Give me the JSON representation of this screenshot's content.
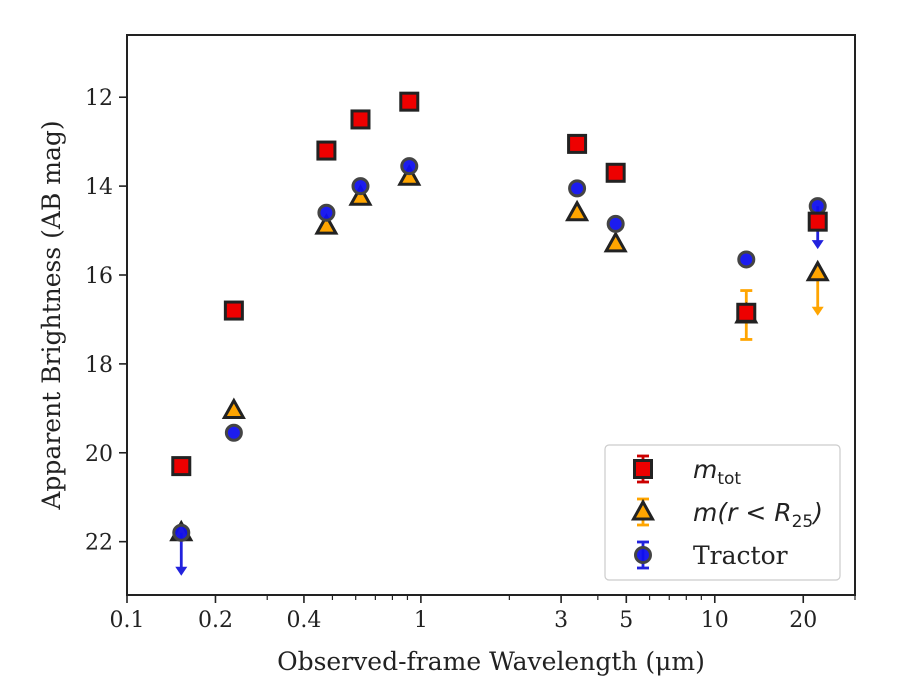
{
  "chart_data": {
    "type": "scatter",
    "xlabel": "Observed-frame Wavelength (μm)",
    "ylabel": "Apparent Brightness (AB mag)",
    "x_scale": "log",
    "xlim": [
      0.1,
      30
    ],
    "ylim": [
      23.2,
      10.6
    ],
    "y_inverted": true,
    "x_ticks": [
      {
        "value": 0.1,
        "label": "0.1"
      },
      {
        "value": 0.2,
        "label": "0.2"
      },
      {
        "value": 0.4,
        "label": "0.4"
      },
      {
        "value": 1,
        "label": "1"
      },
      {
        "value": 3,
        "label": "3"
      },
      {
        "value": 5,
        "label": "5"
      },
      {
        "value": 10,
        "label": "10"
      },
      {
        "value": 20,
        "label": "20"
      }
    ],
    "x_minor_ticks": [
      0.3,
      0.5,
      0.6,
      0.7,
      0.8,
      0.9,
      2,
      4,
      6,
      7,
      8,
      9,
      30
    ],
    "y_ticks": [
      12,
      14,
      16,
      18,
      20,
      22
    ],
    "legend_position": "lower-right",
    "series": [
      {
        "name": "m_tot",
        "marker": "square",
        "color": "#ee0000",
        "errcolor": "#cc0000",
        "points": [
          {
            "x": 0.153,
            "y": 20.3
          },
          {
            "x": 0.231,
            "y": 16.8
          },
          {
            "x": 0.477,
            "y": 13.2
          },
          {
            "x": 0.623,
            "y": 12.5
          },
          {
            "x": 0.913,
            "y": 12.1
          },
          {
            "x": 3.4,
            "y": 13.05
          },
          {
            "x": 4.6,
            "y": 13.7
          },
          {
            "x": 12.8,
            "y": 16.85
          },
          {
            "x": 22.4,
            "y": 14.8
          }
        ]
      },
      {
        "name": "m(r<R25)",
        "marker": "triangle",
        "color": "#ffa500",
        "errcolor": "#ffa500",
        "points": [
          {
            "x": 0.153,
            "y": 21.8
          },
          {
            "x": 0.231,
            "y": 19.05
          },
          {
            "x": 0.477,
            "y": 14.9
          },
          {
            "x": 0.623,
            "y": 14.25
          },
          {
            "x": 0.913,
            "y": 13.8
          },
          {
            "x": 3.4,
            "y": 14.6
          },
          {
            "x": 4.6,
            "y": 15.3
          },
          {
            "x": 12.8,
            "y": 16.9,
            "yerr": 0.55
          },
          {
            "x": 22.4,
            "y": 15.95,
            "upper_limit": true
          }
        ]
      },
      {
        "name": "Tractor",
        "marker": "circle",
        "color": "#1010ee",
        "errcolor": "#2222dd",
        "points": [
          {
            "x": 0.153,
            "y": 21.8,
            "upper_limit": true
          },
          {
            "x": 0.231,
            "y": 19.55
          },
          {
            "x": 0.477,
            "y": 14.6
          },
          {
            "x": 0.623,
            "y": 14.0
          },
          {
            "x": 0.913,
            "y": 13.55
          },
          {
            "x": 3.4,
            "y": 14.05
          },
          {
            "x": 4.6,
            "y": 14.85
          },
          {
            "x": 12.8,
            "y": 15.65
          },
          {
            "x": 22.4,
            "y": 14.45,
            "upper_limit": true
          }
        ]
      }
    ],
    "legend": [
      {
        "math": "m",
        "sub": "tot",
        "tail": ""
      },
      {
        "math": "m(r < R",
        "sub": "25",
        "tail": ")"
      },
      {
        "text": "Tractor"
      }
    ]
  }
}
